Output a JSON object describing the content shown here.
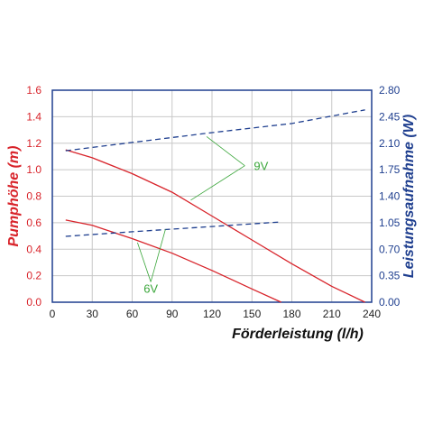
{
  "chart_data": {
    "type": "line",
    "xlabel": "Förderleistung (l/h)",
    "ylabel_left": "Pumphöhe (m)",
    "ylabel_right": "Leistungsaufnahme (W)",
    "xlim": [
      0,
      240
    ],
    "ylim_left": [
      0,
      1.6
    ],
    "ylim_right": [
      0,
      2.8
    ],
    "x_ticks": [
      "0",
      "30",
      "60",
      "90",
      "120",
      "150",
      "180",
      "210",
      "240"
    ],
    "y_left_ticks": [
      "0.0",
      "0.2",
      "0.4",
      "0.6",
      "0.8",
      "1.0",
      "1.2",
      "1.4",
      "1.6"
    ],
    "y_right_ticks": [
      "0.00",
      "0.35",
      "0.70",
      "1.05",
      "1.40",
      "1.75",
      "2.10",
      "2.45",
      "2.80"
    ],
    "grid": true,
    "colors": {
      "head": "#d8232a",
      "power": "#1f3f8f",
      "annotation": "#3aa63a",
      "grid": "#c8c8c8",
      "frame": "#1f3f8f"
    },
    "series": [
      {
        "name": "9V",
        "axis": "left",
        "style": "solid",
        "color": "#d8232a",
        "x": [
          10,
          30,
          60,
          90,
          120,
          150,
          180,
          210,
          235
        ],
        "y": [
          1.15,
          1.09,
          0.97,
          0.83,
          0.65,
          0.47,
          0.29,
          0.12,
          0.0
        ]
      },
      {
        "name": "6V",
        "axis": "left",
        "style": "solid",
        "color": "#d8232a",
        "x": [
          10,
          30,
          60,
          90,
          120,
          150,
          172
        ],
        "y": [
          0.62,
          0.58,
          0.48,
          0.37,
          0.24,
          0.1,
          0.0
        ]
      },
      {
        "name": "9V",
        "axis": "right",
        "style": "dashed",
        "color": "#1f3f8f",
        "x": [
          10,
          60,
          120,
          180,
          235
        ],
        "y": [
          2.0,
          2.11,
          2.24,
          2.36,
          2.54
        ]
      },
      {
        "name": "6V",
        "axis": "right",
        "style": "dashed",
        "color": "#1f3f8f",
        "x": [
          10,
          60,
          120,
          172
        ],
        "y": [
          0.87,
          0.93,
          1.0,
          1.06
        ]
      }
    ],
    "annotations": [
      {
        "text": "9V",
        "x": 146,
        "y_left": 1.03,
        "pointers": [
          {
            "x": 116,
            "y_left": 1.25
          },
          {
            "x": 104,
            "y_left": 0.77
          }
        ]
      },
      {
        "text": "6V",
        "x": 74,
        "y_left": 0.14,
        "pointers": [
          {
            "x": 64,
            "y_left": 0.45
          },
          {
            "x": 85,
            "y_left": 0.55
          }
        ]
      }
    ]
  }
}
